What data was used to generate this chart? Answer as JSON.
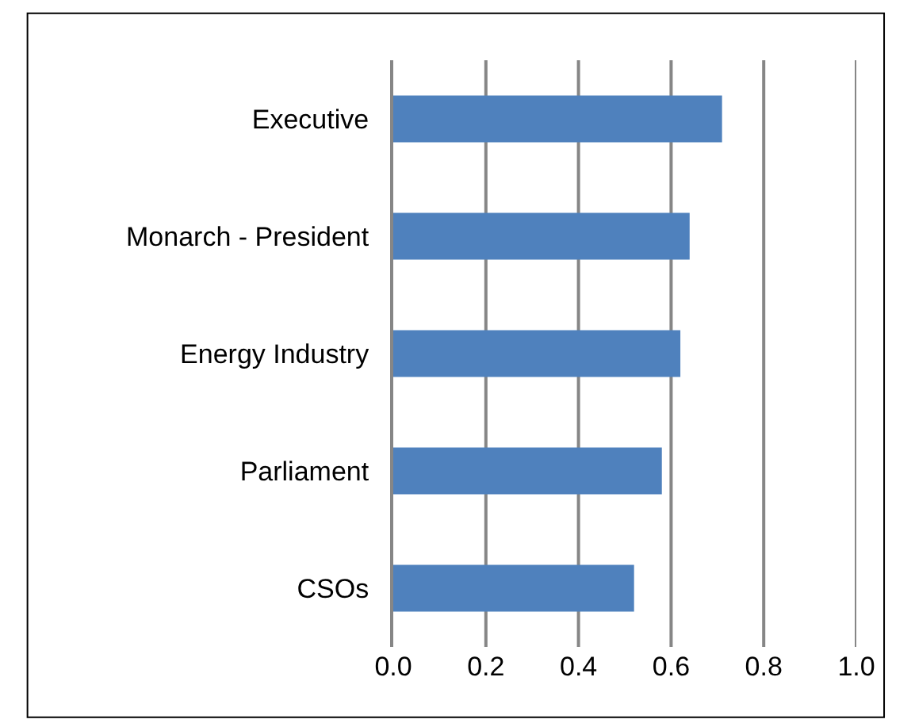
{
  "chart_data": {
    "type": "bar",
    "orientation": "horizontal",
    "categories": [
      "Executive",
      "Monarch - President",
      "Energy Industry",
      "Parliament",
      "CSOs"
    ],
    "values": [
      0.71,
      0.64,
      0.62,
      0.58,
      0.52
    ],
    "color": "#4f81bd",
    "xlim": [
      0,
      1
    ],
    "xticks": [
      {
        "value": 0,
        "label": "0.0"
      },
      {
        "value": 0.2,
        "label": "0.2"
      },
      {
        "value": 0.4,
        "label": "0.4"
      },
      {
        "value": 0.6,
        "label": "0.6"
      },
      {
        "value": 0.8,
        "label": "0.8"
      },
      {
        "value": 1,
        "label": "1.0"
      }
    ],
    "grid": "x"
  }
}
